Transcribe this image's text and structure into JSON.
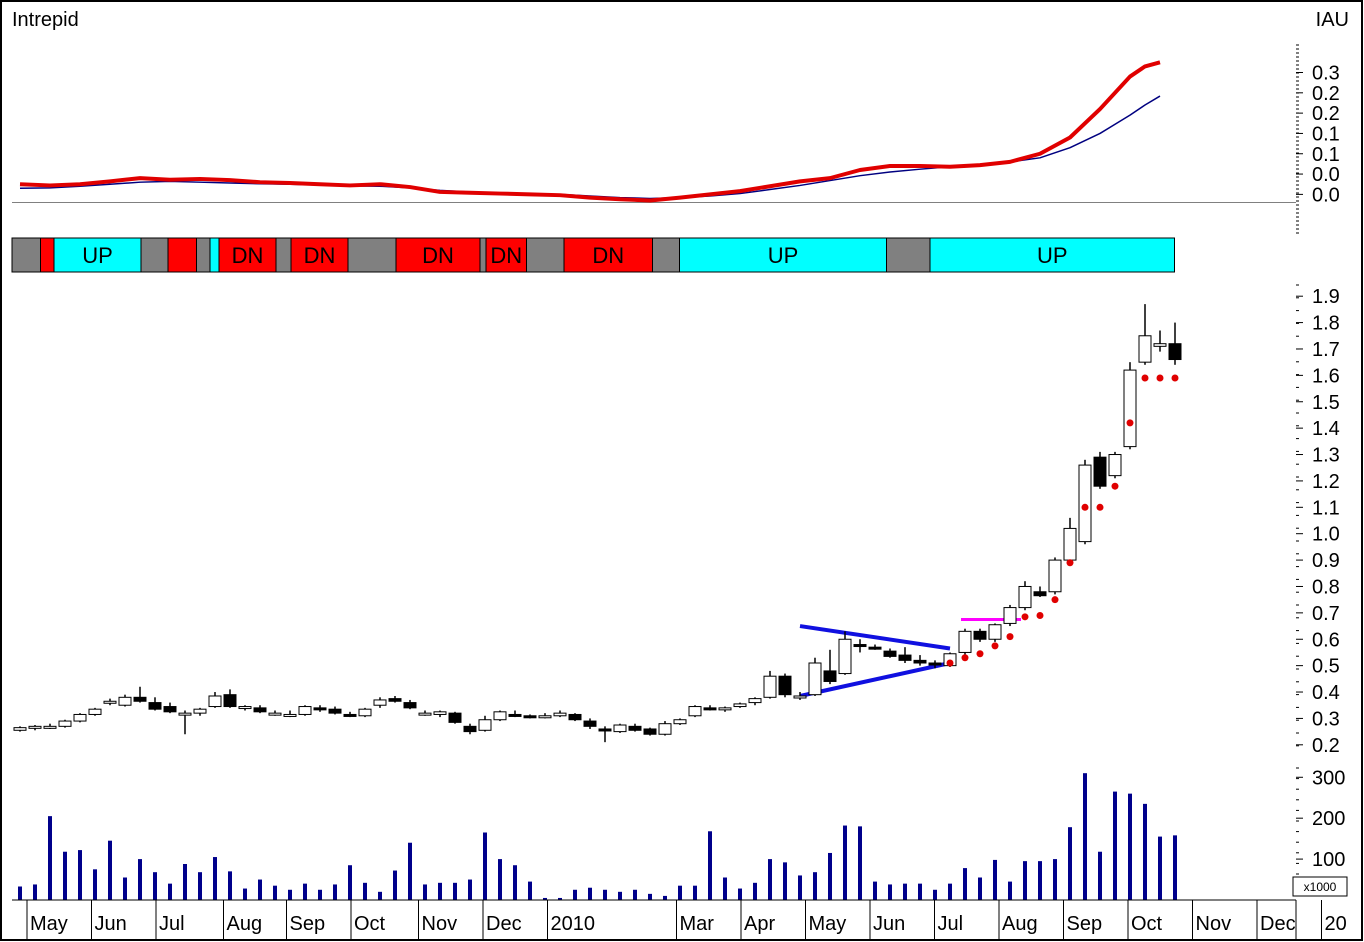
{
  "title_left": "Intrepid",
  "title_right": "IAU",
  "volume_unit": "x1000",
  "colors": {
    "up": "#00ffff",
    "down": "#ff0000",
    "neutral": "#808080",
    "fast_line": "#e00000",
    "slow_line": "#000080",
    "trend_lines": "#1010e0",
    "stop_dots": "#e00000",
    "resistance": "#ff00ff",
    "volume": "#00008b"
  },
  "x_axis": {
    "months": [
      {
        "label": "May",
        "x": 1
      },
      {
        "label": "Jun",
        "x": 5.3
      },
      {
        "label": "Jul",
        "x": 9.6
      },
      {
        "label": "Aug",
        "x": 14.1
      },
      {
        "label": "Sep",
        "x": 18.3
      },
      {
        "label": "Oct",
        "x": 22.6
      },
      {
        "label": "Nov",
        "x": 27.1
      },
      {
        "label": "Dec",
        "x": 31.4
      },
      {
        "label": "2010",
        "x": 35.7
      },
      {
        "label": "Mar",
        "x": 44.3
      },
      {
        "label": "Apr",
        "x": 48.6
      },
      {
        "label": "May",
        "x": 52.9
      },
      {
        "label": "Jun",
        "x": 57.2
      },
      {
        "label": "Jul",
        "x": 61.5
      },
      {
        "label": "Aug",
        "x": 65.8
      },
      {
        "label": "Sep",
        "x": 70.1
      },
      {
        "label": "Oct",
        "x": 74.4
      },
      {
        "label": "Nov",
        "x": 78.7
      },
      {
        "label": "Dec",
        "x": 83
      },
      {
        "label": "20",
        "x": 87.3
      }
    ]
  },
  "chart_data": [
    {
      "type": "line",
      "panel": "indicator",
      "ylim": [
        -0.08,
        0.4
      ],
      "ytick_labels": [
        "0.3",
        "0.2",
        "0.2",
        "0.1",
        "0.1",
        "0.0",
        "0.0"
      ],
      "ytick_values": [
        0.32,
        0.27,
        0.22,
        0.17,
        0.12,
        0.07,
        0.02
      ],
      "x": [
        0,
        2,
        4,
        6,
        8,
        10,
        12,
        14,
        16,
        18,
        20,
        22,
        24,
        26,
        28,
        30,
        32,
        34,
        36,
        38,
        40,
        42,
        44,
        46,
        48,
        50,
        52,
        54,
        56,
        58,
        60,
        62,
        64,
        66,
        68,
        70,
        72,
        74,
        75,
        76
      ],
      "series": [
        {
          "values": [
            0.045,
            0.042,
            0.045,
            0.052,
            0.06,
            0.056,
            0.058,
            0.055,
            0.05,
            0.048,
            0.045,
            0.042,
            0.045,
            0.038,
            0.026,
            0.024,
            0.022,
            0.02,
            0.018,
            0.012,
            0.008,
            0.005,
            0.012,
            0.02,
            0.028,
            0.04,
            0.052,
            0.06,
            0.08,
            0.09,
            0.09,
            0.088,
            0.092,
            0.1,
            0.12,
            0.16,
            0.23,
            0.31,
            0.335,
            0.345
          ]
        },
        {
          "values": [
            0.035,
            0.036,
            0.04,
            0.045,
            0.05,
            0.052,
            0.05,
            0.048,
            0.046,
            0.045,
            0.043,
            0.041,
            0.04,
            0.036,
            0.03,
            0.026,
            0.023,
            0.021,
            0.02,
            0.016,
            0.012,
            0.01,
            0.012,
            0.016,
            0.022,
            0.032,
            0.042,
            0.054,
            0.066,
            0.075,
            0.082,
            0.088,
            0.094,
            0.1,
            0.11,
            0.135,
            0.17,
            0.215,
            0.24,
            0.262
          ]
        }
      ]
    },
    {
      "type": "band",
      "panel": "trend-state",
      "segments": [
        {
          "from": 0,
          "to": 1.9,
          "state": "neutral",
          "label": ""
        },
        {
          "from": 1.9,
          "to": 2.8,
          "state": "down",
          "label": ""
        },
        {
          "from": 2.8,
          "to": 8.6,
          "state": "up",
          "label": "UP"
        },
        {
          "from": 8.6,
          "to": 10.4,
          "state": "neutral",
          "label": ""
        },
        {
          "from": 10.4,
          "to": 12.3,
          "state": "down",
          "label": ""
        },
        {
          "from": 12.3,
          "to": 13.2,
          "state": "neutral",
          "label": ""
        },
        {
          "from": 13.2,
          "to": 13.8,
          "state": "up",
          "label": ""
        },
        {
          "from": 13.8,
          "to": 17.6,
          "state": "down",
          "label": "DN"
        },
        {
          "from": 17.6,
          "to": 18.6,
          "state": "neutral",
          "label": ""
        },
        {
          "from": 18.6,
          "to": 22.4,
          "state": "down",
          "label": "DN"
        },
        {
          "from": 22.4,
          "to": 25.6,
          "state": "neutral",
          "label": ""
        },
        {
          "from": 25.6,
          "to": 31.2,
          "state": "down",
          "label": "DN"
        },
        {
          "from": 31.2,
          "to": 31.6,
          "state": "neutral",
          "label": ""
        },
        {
          "from": 31.6,
          "to": 34.3,
          "state": "down",
          "label": "DN"
        },
        {
          "from": 34.3,
          "to": 36.8,
          "state": "neutral",
          "label": ""
        },
        {
          "from": 36.8,
          "to": 42.7,
          "state": "down",
          "label": "DN"
        },
        {
          "from": 42.7,
          "to": 44.5,
          "state": "neutral",
          "label": ""
        },
        {
          "from": 44.5,
          "to": 58.3,
          "state": "up",
          "label": "UP"
        },
        {
          "from": 58.3,
          "to": 61.2,
          "state": "neutral",
          "label": ""
        },
        {
          "from": 61.2,
          "to": 77.5,
          "state": "up",
          "label": "UP"
        }
      ]
    },
    {
      "type": "candlestick",
      "panel": "price",
      "ylim": [
        0.15,
        1.95
      ],
      "ytick_values": [
        0.2,
        0.3,
        0.4,
        0.5,
        0.6,
        0.7,
        0.8,
        0.9,
        1.0,
        1.1,
        1.2,
        1.3,
        1.4,
        1.5,
        1.6,
        1.7,
        1.8,
        1.9
      ],
      "ytick_labels": [
        "0.2",
        "0.3",
        "0.4",
        "0.5",
        "0.6",
        "0.7",
        "0.8",
        "0.9",
        "1.0",
        "1.1",
        "1.2",
        "1.3",
        "1.4",
        "1.5",
        "1.6",
        "1.7",
        "1.8",
        "1.9"
      ],
      "candles": [
        [
          0,
          0.255,
          0.27,
          0.25,
          0.265
        ],
        [
          1,
          0.265,
          0.275,
          0.255,
          0.27
        ],
        [
          2,
          0.27,
          0.28,
          0.26,
          0.27
        ],
        [
          3,
          0.27,
          0.295,
          0.265,
          0.29
        ],
        [
          4,
          0.29,
          0.32,
          0.285,
          0.315
        ],
        [
          5,
          0.315,
          0.34,
          0.31,
          0.335
        ],
        [
          6,
          0.36,
          0.375,
          0.35,
          0.365
        ],
        [
          7,
          0.35,
          0.39,
          0.345,
          0.38
        ],
        [
          8,
          0.38,
          0.42,
          0.36,
          0.365
        ],
        [
          9,
          0.36,
          0.38,
          0.33,
          0.335
        ],
        [
          10,
          0.345,
          0.36,
          0.32,
          0.325
        ],
        [
          11,
          0.32,
          0.33,
          0.24,
          0.32
        ],
        [
          12,
          0.32,
          0.34,
          0.31,
          0.335
        ],
        [
          13,
          0.345,
          0.4,
          0.34,
          0.385
        ],
        [
          14,
          0.39,
          0.41,
          0.34,
          0.345
        ],
        [
          15,
          0.345,
          0.35,
          0.33,
          0.345
        ],
        [
          16,
          0.34,
          0.35,
          0.32,
          0.325
        ],
        [
          17,
          0.32,
          0.33,
          0.31,
          0.32
        ],
        [
          18,
          0.31,
          0.33,
          0.305,
          0.315
        ],
        [
          19,
          0.315,
          0.35,
          0.31,
          0.345
        ],
        [
          20,
          0.34,
          0.35,
          0.325,
          0.335
        ],
        [
          21,
          0.335,
          0.345,
          0.315,
          0.32
        ],
        [
          22,
          0.315,
          0.325,
          0.305,
          0.31
        ],
        [
          23,
          0.31,
          0.34,
          0.305,
          0.335
        ],
        [
          24,
          0.35,
          0.38,
          0.34,
          0.37
        ],
        [
          25,
          0.375,
          0.385,
          0.36,
          0.365
        ],
        [
          26,
          0.36,
          0.37,
          0.335,
          0.34
        ],
        [
          27,
          0.32,
          0.33,
          0.31,
          0.32
        ],
        [
          28,
          0.315,
          0.33,
          0.305,
          0.325
        ],
        [
          29,
          0.32,
          0.325,
          0.28,
          0.285
        ],
        [
          30,
          0.27,
          0.28,
          0.24,
          0.25
        ],
        [
          31,
          0.255,
          0.31,
          0.25,
          0.295
        ],
        [
          32,
          0.295,
          0.33,
          0.29,
          0.325
        ],
        [
          33,
          0.315,
          0.33,
          0.305,
          0.31
        ],
        [
          34,
          0.31,
          0.315,
          0.3,
          0.305
        ],
        [
          35,
          0.305,
          0.32,
          0.3,
          0.31
        ],
        [
          36,
          0.31,
          0.33,
          0.305,
          0.32
        ],
        [
          37,
          0.315,
          0.32,
          0.29,
          0.295
        ],
        [
          38,
          0.29,
          0.3,
          0.26,
          0.27
        ],
        [
          39,
          0.26,
          0.27,
          0.21,
          0.255
        ],
        [
          40,
          0.25,
          0.28,
          0.245,
          0.275
        ],
        [
          41,
          0.27,
          0.28,
          0.25,
          0.255
        ],
        [
          42,
          0.26,
          0.265,
          0.235,
          0.24
        ],
        [
          43,
          0.24,
          0.29,
          0.235,
          0.28
        ],
        [
          44,
          0.28,
          0.3,
          0.275,
          0.295
        ],
        [
          45,
          0.31,
          0.35,
          0.305,
          0.345
        ],
        [
          46,
          0.34,
          0.35,
          0.33,
          0.335
        ],
        [
          47,
          0.335,
          0.345,
          0.325,
          0.34
        ],
        [
          48,
          0.345,
          0.36,
          0.34,
          0.355
        ],
        [
          49,
          0.36,
          0.38,
          0.35,
          0.375
        ],
        [
          50,
          0.38,
          0.48,
          0.375,
          0.46
        ],
        [
          51,
          0.46,
          0.47,
          0.38,
          0.39
        ],
        [
          52,
          0.38,
          0.4,
          0.37,
          0.385
        ],
        [
          53,
          0.39,
          0.53,
          0.385,
          0.51
        ],
        [
          54,
          0.48,
          0.56,
          0.43,
          0.44
        ],
        [
          55,
          0.47,
          0.63,
          0.465,
          0.6
        ],
        [
          56,
          0.58,
          0.6,
          0.55,
          0.575
        ],
        [
          57,
          0.57,
          0.58,
          0.56,
          0.565
        ],
        [
          58,
          0.555,
          0.565,
          0.53,
          0.535
        ],
        [
          59,
          0.54,
          0.57,
          0.51,
          0.52
        ],
        [
          60,
          0.52,
          0.54,
          0.5,
          0.51
        ],
        [
          61,
          0.51,
          0.52,
          0.49,
          0.505
        ],
        [
          62,
          0.5,
          0.55,
          0.495,
          0.545
        ],
        [
          63,
          0.55,
          0.64,
          0.54,
          0.63
        ],
        [
          64,
          0.63,
          0.64,
          0.59,
          0.6
        ],
        [
          65,
          0.6,
          0.66,
          0.59,
          0.655
        ],
        [
          66,
          0.66,
          0.73,
          0.65,
          0.72
        ],
        [
          67,
          0.72,
          0.82,
          0.71,
          0.8
        ],
        [
          68,
          0.78,
          0.8,
          0.76,
          0.765
        ],
        [
          69,
          0.78,
          0.91,
          0.77,
          0.9
        ],
        [
          70,
          0.9,
          1.06,
          0.89,
          1.02
        ],
        [
          71,
          0.97,
          1.28,
          0.96,
          1.26
        ],
        [
          72,
          1.29,
          1.31,
          1.17,
          1.18
        ],
        [
          73,
          1.22,
          1.31,
          1.21,
          1.3
        ],
        [
          74,
          1.33,
          1.65,
          1.32,
          1.62
        ],
        [
          75,
          1.65,
          1.87,
          1.64,
          1.75
        ],
        [
          76,
          1.71,
          1.77,
          1.69,
          1.72
        ],
        [
          77,
          1.72,
          1.8,
          1.64,
          1.66
        ]
      ],
      "stop_dots": [
        [
          62,
          0.51
        ],
        [
          63,
          0.53
        ],
        [
          64,
          0.545
        ],
        [
          65,
          0.575
        ],
        [
          66,
          0.61
        ],
        [
          67,
          0.685
        ],
        [
          68,
          0.69
        ],
        [
          69,
          0.75
        ],
        [
          70,
          0.89
        ],
        [
          71,
          1.1
        ],
        [
          72,
          1.1
        ],
        [
          73,
          1.18
        ],
        [
          74,
          1.42
        ],
        [
          75,
          1.59
        ],
        [
          76,
          1.59
        ],
        [
          77,
          1.59
        ]
      ],
      "trend_lines": [
        {
          "from": [
            52,
            0.65
          ],
          "to": [
            62,
            0.565
          ]
        },
        {
          "from": [
            52,
            0.385
          ],
          "to": [
            62,
            0.51
          ]
        }
      ],
      "resistance_line": {
        "from": [
          63,
          0.675
        ],
        "to": [
          67,
          0.675
        ]
      }
    },
    {
      "type": "bar",
      "panel": "volume",
      "ylim": [
        0,
        330
      ],
      "ytick_values": [
        100,
        200,
        300
      ],
      "ytick_labels": [
        "100",
        "200",
        "300"
      ],
      "values": [
        33,
        38,
        205,
        118,
        122,
        75,
        145,
        55,
        100,
        68,
        40,
        88,
        68,
        105,
        70,
        28,
        50,
        35,
        25,
        40,
        25,
        38,
        85,
        42,
        20,
        72,
        140,
        38,
        42,
        42,
        50,
        165,
        100,
        85,
        45,
        5,
        5,
        25,
        30,
        25,
        20,
        25,
        15,
        10,
        35,
        35,
        168,
        55,
        28,
        42,
        100,
        92,
        60,
        68,
        115,
        182,
        180,
        45,
        38,
        40,
        40,
        25,
        40,
        78,
        55,
        98,
        45,
        95,
        95,
        100,
        178,
        310,
        118,
        265,
        260,
        235,
        155,
        158
      ]
    }
  ]
}
